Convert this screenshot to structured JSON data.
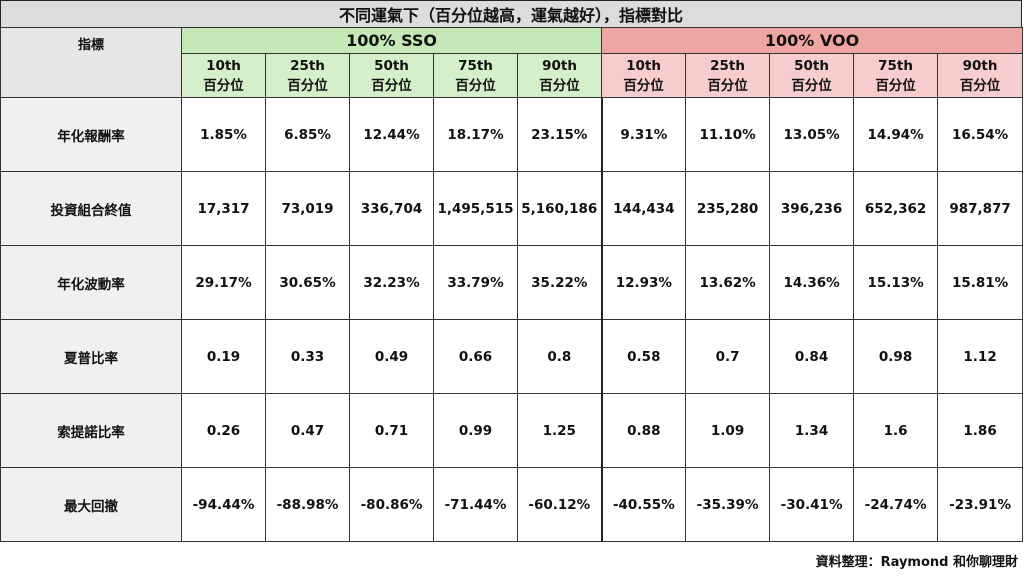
{
  "title": "不同運氣下（百分位越高，運氣越好），指標對比",
  "header": {
    "metric_label": "指標",
    "groups": [
      "100% SSO",
      "100% VOO"
    ],
    "percentiles": [
      "10th",
      "25th",
      "50th",
      "75th",
      "90th"
    ],
    "percentile_suffix": "百分位"
  },
  "rows": [
    {
      "label": "年化報酬率",
      "sso": [
        "1.85%",
        "6.85%",
        "12.44%",
        "18.17%",
        "23.15%"
      ],
      "voo": [
        "9.31%",
        "11.10%",
        "13.05%",
        "14.94%",
        "16.54%"
      ]
    },
    {
      "label": "投資組合終值",
      "sso": [
        "17,317",
        "73,019",
        "336,704",
        "1,495,515",
        "5,160,186"
      ],
      "voo": [
        "144,434",
        "235,280",
        "396,236",
        "652,362",
        "987,877"
      ]
    },
    {
      "label": "年化波動率",
      "sso": [
        "29.17%",
        "30.65%",
        "32.23%",
        "33.79%",
        "35.22%"
      ],
      "voo": [
        "12.93%",
        "13.62%",
        "14.36%",
        "15.13%",
        "15.81%"
      ]
    },
    {
      "label": "夏普比率",
      "sso": [
        "0.19",
        "0.33",
        "0.49",
        "0.66",
        "0.8"
      ],
      "voo": [
        "0.58",
        "0.7",
        "0.84",
        "0.98",
        "1.12"
      ]
    },
    {
      "label": "索提諾比率",
      "sso": [
        "0.26",
        "0.47",
        "0.71",
        "0.99",
        "1.25"
      ],
      "voo": [
        "0.88",
        "1.09",
        "1.34",
        "1.6",
        "1.86"
      ]
    },
    {
      "label": "最大回撤",
      "sso": [
        "-94.44%",
        "-88.98%",
        "-80.86%",
        "-71.44%",
        "-60.12%"
      ],
      "voo": [
        "-40.55%",
        "-35.39%",
        "-30.41%",
        "-24.74%",
        "-23.91%"
      ]
    }
  ],
  "colors": {
    "title_bg": "#dcdcdc",
    "sso_group": "#c6e7b6",
    "sso_header": "#d6efcb",
    "voo_group": "#f0a5a5",
    "voo_header": "#f7cccc",
    "label_bg": "#f0f0f0"
  },
  "credit": "資料整理：Raymond 和你聊理財"
}
